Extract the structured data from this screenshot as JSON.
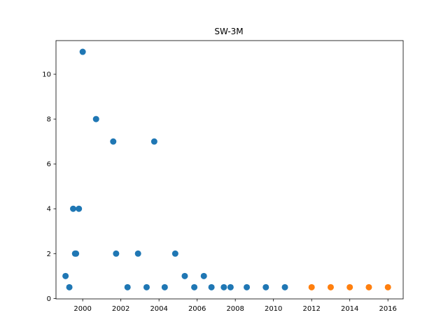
{
  "chart_data": {
    "type": "scatter",
    "title": "SW-3M",
    "xlabel": "",
    "ylabel": "",
    "xlim": [
      1998.6,
      2016.8
    ],
    "ylim": [
      -0.02,
      11.5
    ],
    "x_ticks": [
      "2000",
      "2002",
      "2004",
      "2006",
      "2008",
      "2010",
      "2012",
      "2014",
      "2016"
    ],
    "y_ticks": [
      "0",
      "2",
      "4",
      "6",
      "8",
      "10"
    ],
    "grid": false,
    "legend": "none",
    "series": [
      {
        "color": "#1f77b4",
        "points": [
          {
            "x": 1999.1,
            "y": 1
          },
          {
            "x": 1999.3,
            "y": 0.5
          },
          {
            "x": 1999.5,
            "y": 4
          },
          {
            "x": 1999.6,
            "y": 2
          },
          {
            "x": 1999.65,
            "y": 2
          },
          {
            "x": 1999.8,
            "y": 4
          },
          {
            "x": 2000.0,
            "y": 11
          },
          {
            "x": 2000.7,
            "y": 8
          },
          {
            "x": 2001.6,
            "y": 7
          },
          {
            "x": 2001.75,
            "y": 2
          },
          {
            "x": 2002.35,
            "y": 0.5
          },
          {
            "x": 2002.9,
            "y": 2
          },
          {
            "x": 2003.35,
            "y": 0.5
          },
          {
            "x": 2003.75,
            "y": 7
          },
          {
            "x": 2004.3,
            "y": 0.5
          },
          {
            "x": 2004.85,
            "y": 2
          },
          {
            "x": 2005.35,
            "y": 1
          },
          {
            "x": 2005.85,
            "y": 0.5
          },
          {
            "x": 2006.35,
            "y": 1
          },
          {
            "x": 2006.75,
            "y": 0.5
          },
          {
            "x": 2007.4,
            "y": 0.5
          },
          {
            "x": 2007.75,
            "y": 0.5
          },
          {
            "x": 2008.6,
            "y": 0.5
          },
          {
            "x": 2009.6,
            "y": 0.5
          },
          {
            "x": 2010.6,
            "y": 0.5
          }
        ]
      },
      {
        "color": "#ff7f0e",
        "points": [
          {
            "x": 2012.0,
            "y": 0.5
          },
          {
            "x": 2013.0,
            "y": 0.5
          },
          {
            "x": 2014.0,
            "y": 0.5
          },
          {
            "x": 2015.0,
            "y": 0.5
          },
          {
            "x": 2016.0,
            "y": 0.5
          }
        ]
      }
    ]
  }
}
